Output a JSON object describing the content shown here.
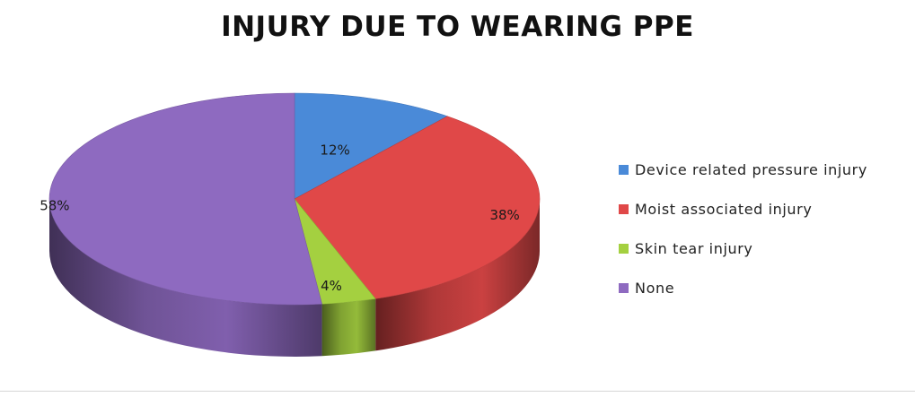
{
  "chart_data": {
    "type": "pie",
    "title": "INJURY DUE TO WEARING PPE",
    "categories": [
      "Device related pressure injury",
      "Moist associated injury",
      "Skin tear injury",
      "None"
    ],
    "values": [
      12,
      38,
      4,
      58
    ],
    "value_labels": [
      "12%",
      "38%",
      "4%",
      "58%"
    ],
    "colors": [
      "#4a8ad8",
      "#e04848",
      "#a4d040",
      "#8e6ac0"
    ],
    "style": "3d",
    "legend_position": "right"
  }
}
